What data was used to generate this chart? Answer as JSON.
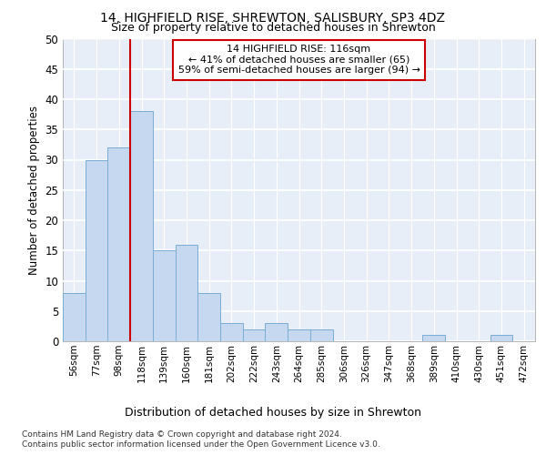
{
  "title1": "14, HIGHFIELD RISE, SHREWTON, SALISBURY, SP3 4DZ",
  "title2": "Size of property relative to detached houses in Shrewton",
  "xlabel": "Distribution of detached houses by size in Shrewton",
  "ylabel": "Number of detached properties",
  "bar_labels": [
    "56sqm",
    "77sqm",
    "98sqm",
    "118sqm",
    "139sqm",
    "160sqm",
    "181sqm",
    "202sqm",
    "222sqm",
    "243sqm",
    "264sqm",
    "285sqm",
    "306sqm",
    "326sqm",
    "347sqm",
    "368sqm",
    "389sqm",
    "410sqm",
    "430sqm",
    "451sqm",
    "472sqm"
  ],
  "bar_values": [
    8,
    30,
    32,
    38,
    15,
    16,
    8,
    3,
    2,
    3,
    2,
    2,
    0,
    0,
    0,
    0,
    1,
    0,
    0,
    1,
    0
  ],
  "bar_color": "#c5d8f0",
  "bar_edge_color": "#7aadd4",
  "annotation_line1": "14 HIGHFIELD RISE: 116sqm",
  "annotation_line2": "← 41% of detached houses are smaller (65)",
  "annotation_line3": "59% of semi-detached houses are larger (94) →",
  "vline_color": "#cc0000",
  "box_edge_color": "#cc0000",
  "ylim": [
    0,
    50
  ],
  "yticks": [
    0,
    5,
    10,
    15,
    20,
    25,
    30,
    35,
    40,
    45,
    50
  ],
  "footer1": "Contains HM Land Registry data © Crown copyright and database right 2024.",
  "footer2": "Contains public sector information licensed under the Open Government Licence v3.0.",
  "plot_bg": "#e8eef8",
  "fig_bg": "#ffffff"
}
